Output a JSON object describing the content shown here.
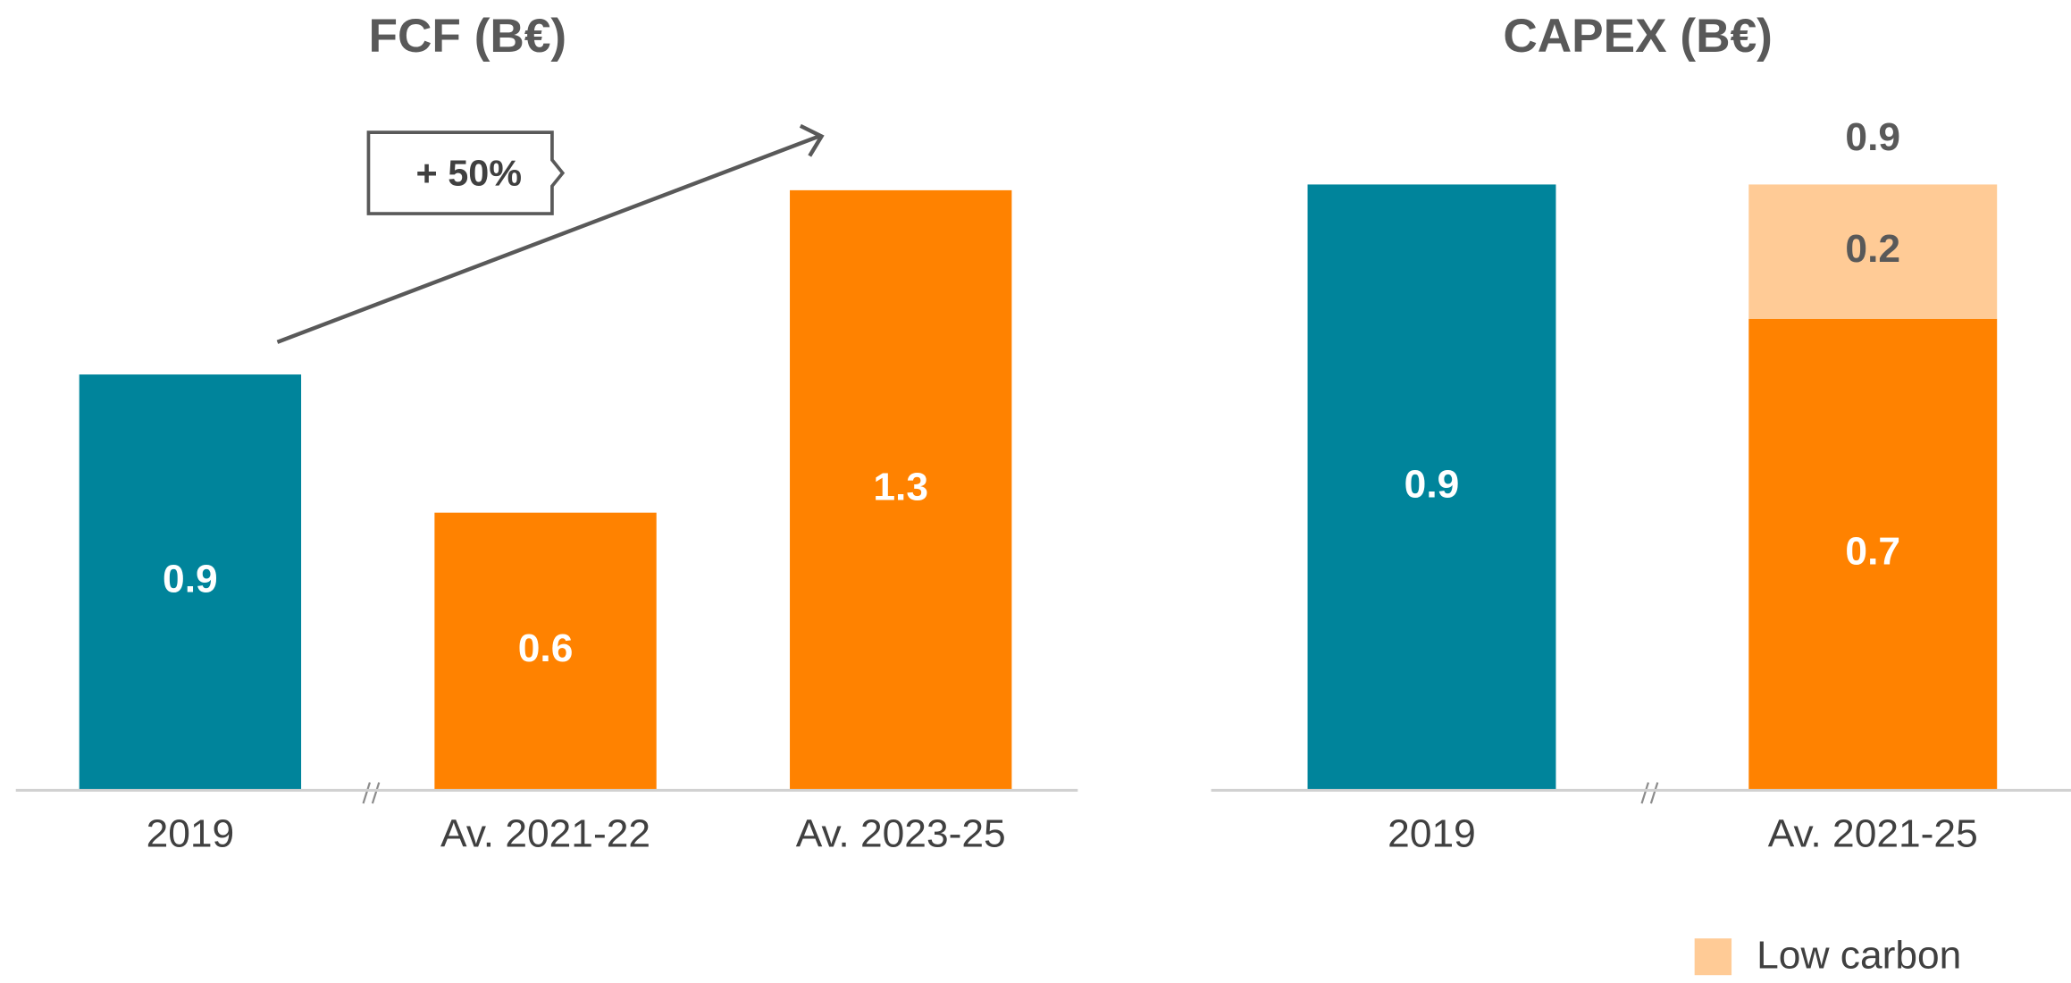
{
  "chart_data": [
    {
      "type": "bar",
      "title": "FCF (B€)",
      "categories": [
        "2019",
        "Av. 2021-22",
        "Av. 2023-25"
      ],
      "values": [
        0.9,
        0.6,
        1.3
      ],
      "colors": [
        "#00849b",
        "#ff8200",
        "#ff8200"
      ],
      "ylim": [
        0,
        1.4
      ],
      "annotation": "+ 50%"
    },
    {
      "type": "stacked_bar",
      "title": "CAPEX (B€)",
      "categories": [
        "2019",
        "Av. 2021-25"
      ],
      "series": [
        {
          "colors": [
            "#00849b",
            "#ff8200"
          ],
          "values": [
            0.9,
            0.7
          ]
        },
        {
          "name": "Low carbon",
          "color": "#ffcb96",
          "values": [
            null,
            0.2
          ]
        }
      ],
      "totals": [
        null,
        0.9
      ],
      "ylim": [
        0,
        0.96
      ]
    }
  ]
}
